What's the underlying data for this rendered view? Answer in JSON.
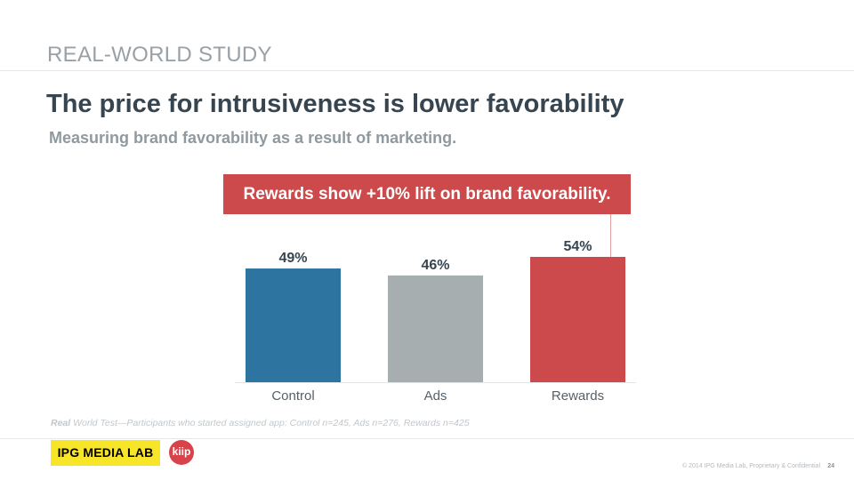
{
  "slide": {
    "section_label": "REAL-WORLD STUDY",
    "title": "The price for intrusiveness is lower favorability",
    "subtitle": "Measuring brand favorability as a result of marketing."
  },
  "callout": {
    "text": "Rewards show +10% lift on brand favorability.",
    "color": "#cc4a4c"
  },
  "chart_data": {
    "type": "bar",
    "title": "",
    "xlabel": "",
    "ylabel": "",
    "categories": [
      "Control",
      "Ads",
      "Rewards"
    ],
    "values": [
      49,
      46,
      54
    ],
    "data_labels": [
      "49%",
      "46%",
      "54%"
    ],
    "colors": [
      "#2e74a0",
      "#a6aeaf",
      "#cc4a4c"
    ],
    "ylim": [
      0,
      54
    ],
    "grid": false,
    "legend": "none"
  },
  "footnote": {
    "lead": "Real",
    "rest": " World Test—Participants who started assigned app: Control n=245, Ads n=276, Rewards n=425"
  },
  "footer": {
    "ipg_logo_text": "IPG MEDIA LAB",
    "kiip_logo_text": "kiip",
    "copyright": "© 2014 IPG Media Lab, Proprietary & Confidential",
    "page_number": "24",
    "ipg_logo_color": "#f7e52a",
    "kiip_logo_color": "#d8424a"
  }
}
